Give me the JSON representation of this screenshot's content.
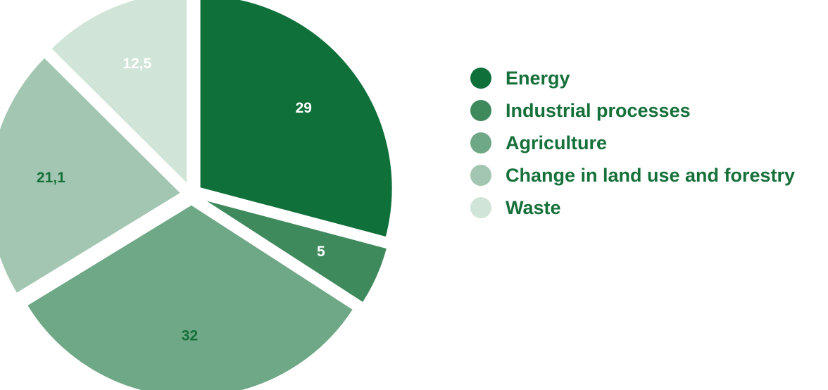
{
  "chart_data": {
    "type": "pie",
    "title": "",
    "slices": [
      {
        "name": "Energy",
        "value": 29,
        "label": "29",
        "color": "#0f703a",
        "label_color": "#ffffff"
      },
      {
        "name": "Industrial processes",
        "value": 5,
        "label": "5",
        "color": "#3f8a5d",
        "label_color": "#ffffff"
      },
      {
        "name": "Agriculture",
        "value": 32,
        "label": "32",
        "color": "#6fa886",
        "label_color": "#16703a"
      },
      {
        "name": "Change in land use and forestry",
        "value": 21.1,
        "label": "21,1",
        "color": "#a2c6b1",
        "label_color": "#16703a"
      },
      {
        "name": "Waste",
        "value": 12.5,
        "label": "12,5",
        "color": "#d0e4d7",
        "label_color": "#ffffff"
      }
    ],
    "legend_position": "right",
    "exploded": true
  }
}
